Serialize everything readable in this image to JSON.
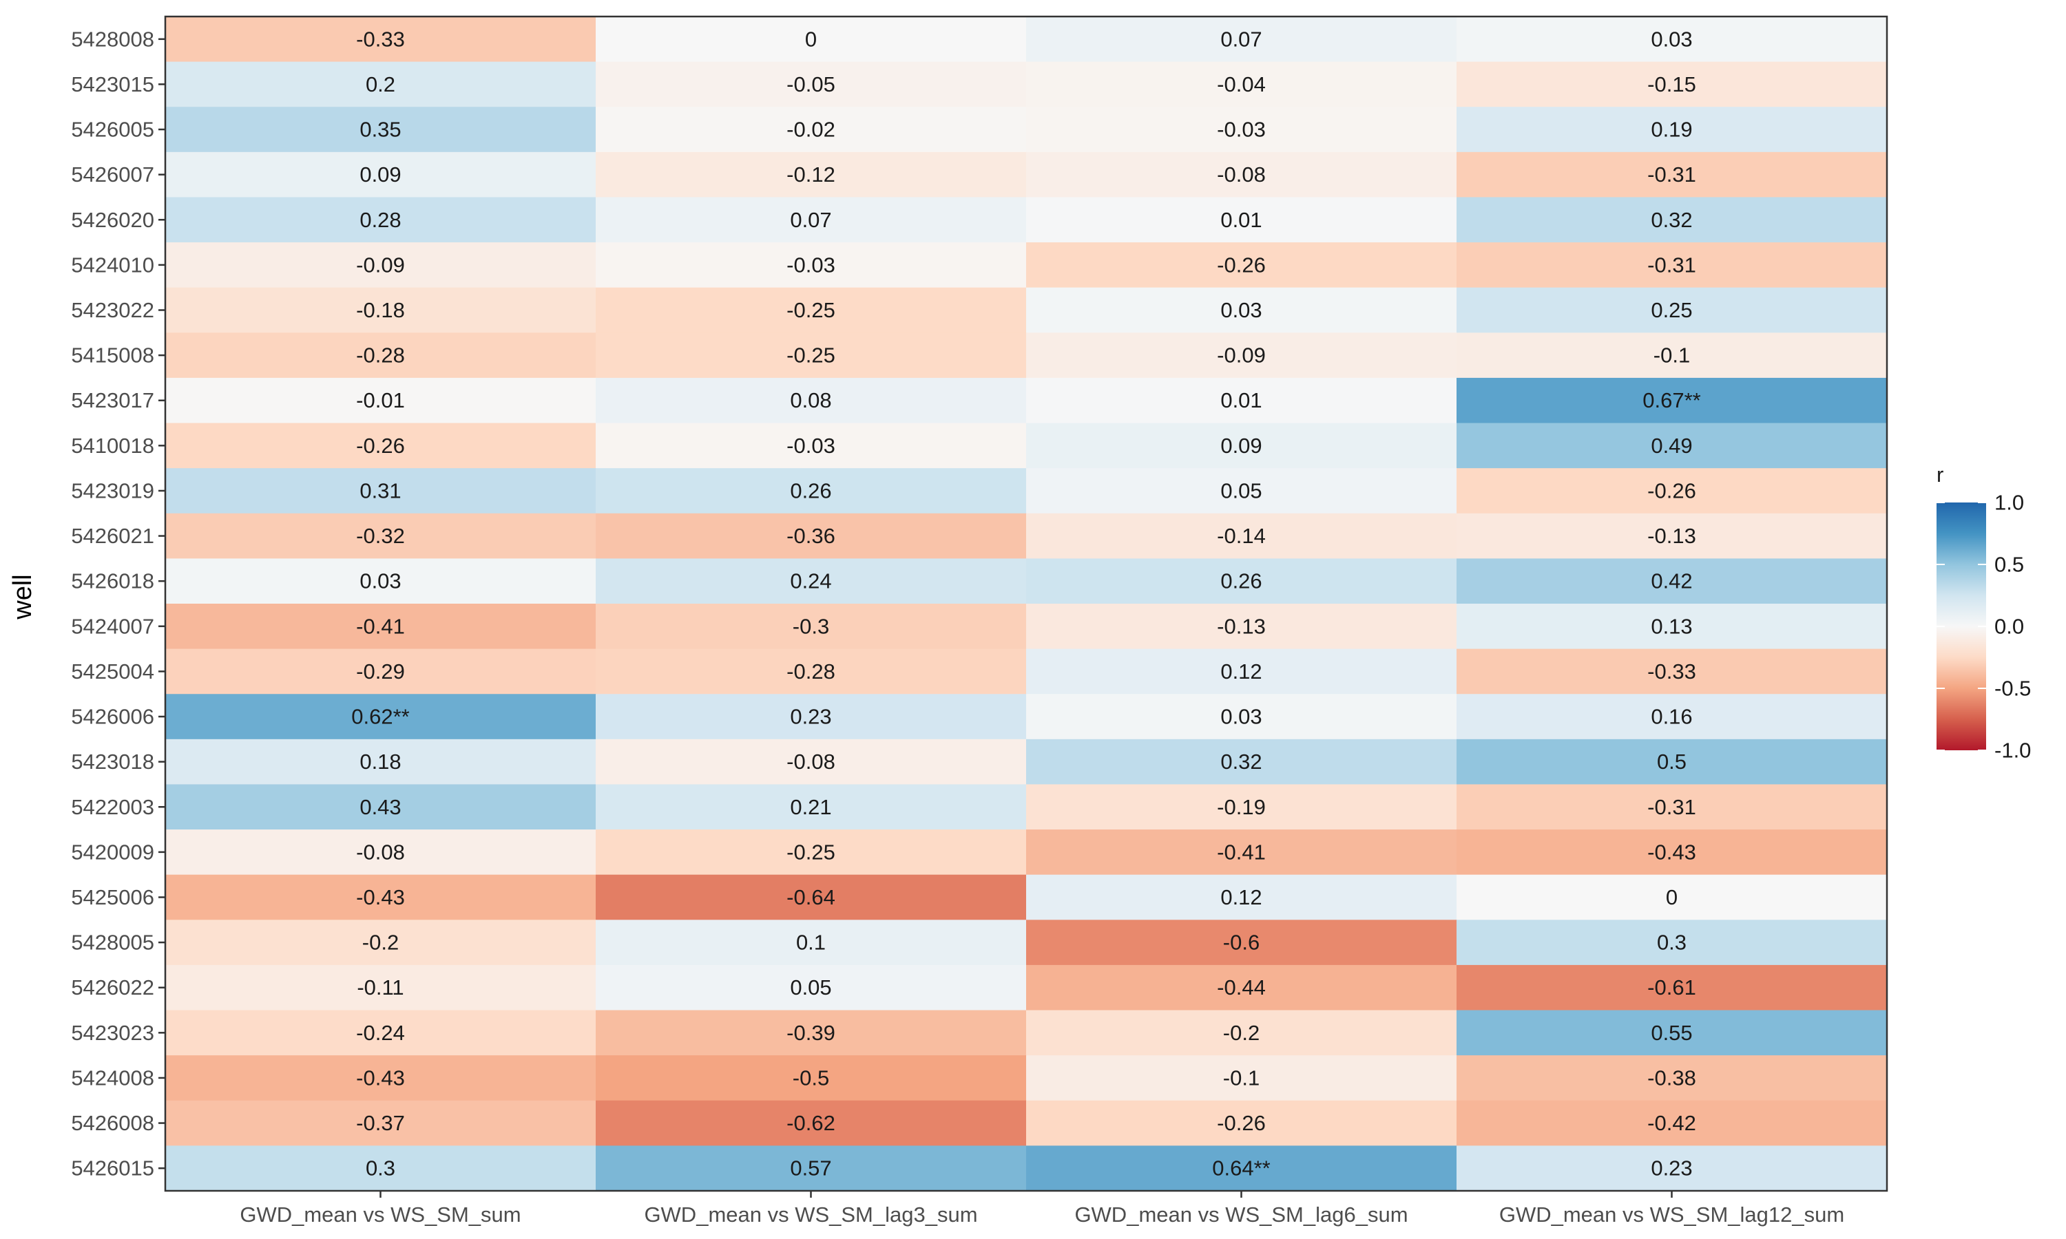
{
  "chart_data": {
    "type": "heatmap",
    "title": "",
    "xlabel": "",
    "ylabel": "well",
    "x_categories": [
      "GWD_mean vs WS_SM_sum",
      "GWD_mean vs WS_SM_lag3_sum",
      "GWD_mean vs WS_SM_lag6_sum",
      "GWD_mean vs WS_SM_lag12_sum"
    ],
    "y_categories": [
      "5428008",
      "5423015",
      "5426005",
      "5426007",
      "5426020",
      "5424010",
      "5423022",
      "5415008",
      "5423017",
      "5410018",
      "5423019",
      "5426021",
      "5426018",
      "5424007",
      "5425004",
      "5426006",
      "5423018",
      "5422003",
      "5420009",
      "5425006",
      "5428005",
      "5426022",
      "5423023",
      "5424008",
      "5426008",
      "5426015"
    ],
    "values": [
      [
        -0.33,
        0,
        0.07,
        0.03
      ],
      [
        0.2,
        -0.05,
        -0.04,
        -0.15
      ],
      [
        0.35,
        -0.02,
        -0.03,
        0.19
      ],
      [
        0.09,
        -0.12,
        -0.08,
        -0.31
      ],
      [
        0.28,
        0.07,
        0.01,
        0.32
      ],
      [
        -0.09,
        -0.03,
        -0.26,
        -0.31
      ],
      [
        -0.18,
        -0.25,
        0.03,
        0.25
      ],
      [
        -0.28,
        -0.25,
        -0.09,
        -0.1
      ],
      [
        -0.01,
        0.08,
        0.01,
        0.67
      ],
      [
        -0.26,
        -0.03,
        0.09,
        0.49
      ],
      [
        0.31,
        0.26,
        0.05,
        -0.26
      ],
      [
        -0.32,
        -0.36,
        -0.14,
        -0.13
      ],
      [
        0.03,
        0.24,
        0.26,
        0.42
      ],
      [
        -0.41,
        -0.3,
        -0.13,
        0.13
      ],
      [
        -0.29,
        -0.28,
        0.12,
        -0.33
      ],
      [
        0.62,
        0.23,
        0.03,
        0.16
      ],
      [
        0.18,
        -0.08,
        0.32,
        0.5
      ],
      [
        0.43,
        0.21,
        -0.19,
        -0.31
      ],
      [
        -0.08,
        -0.25,
        -0.41,
        -0.43
      ],
      [
        -0.43,
        -0.64,
        0.12,
        0
      ],
      [
        -0.2,
        0.1,
        -0.6,
        0.3
      ],
      [
        -0.11,
        0.05,
        -0.44,
        -0.61
      ],
      [
        -0.24,
        -0.39,
        -0.2,
        0.55
      ],
      [
        -0.43,
        -0.5,
        -0.1,
        -0.38
      ],
      [
        -0.37,
        -0.62,
        -0.26,
        -0.42
      ],
      [
        0.3,
        0.57,
        0.64,
        0.23
      ]
    ],
    "labels": [
      [
        "-0.33",
        "0",
        "0.07",
        "0.03"
      ],
      [
        "0.2",
        "-0.05",
        "-0.04",
        "-0.15"
      ],
      [
        "0.35",
        "-0.02",
        "-0.03",
        "0.19"
      ],
      [
        "0.09",
        "-0.12",
        "-0.08",
        "-0.31"
      ],
      [
        "0.28",
        "0.07",
        "0.01",
        "0.32"
      ],
      [
        "-0.09",
        "-0.03",
        "-0.26",
        "-0.31"
      ],
      [
        "-0.18",
        "-0.25",
        "0.03",
        "0.25"
      ],
      [
        "-0.28",
        "-0.25",
        "-0.09",
        "-0.1"
      ],
      [
        "-0.01",
        "0.08",
        "0.01",
        "0.67**"
      ],
      [
        "-0.26",
        "-0.03",
        "0.09",
        "0.49"
      ],
      [
        "0.31",
        "0.26",
        "0.05",
        "-0.26"
      ],
      [
        "-0.32",
        "-0.36",
        "-0.14",
        "-0.13"
      ],
      [
        "0.03",
        "0.24",
        "0.26",
        "0.42"
      ],
      [
        "-0.41",
        "-0.3",
        "-0.13",
        "0.13"
      ],
      [
        "-0.29",
        "-0.28",
        "0.12",
        "-0.33"
      ],
      [
        "0.62**",
        "0.23",
        "0.03",
        "0.16"
      ],
      [
        "0.18",
        "-0.08",
        "0.32",
        "0.5"
      ],
      [
        "0.43",
        "0.21",
        "-0.19",
        "-0.31"
      ],
      [
        "-0.08",
        "-0.25",
        "-0.41",
        "-0.43"
      ],
      [
        "-0.43",
        "-0.64",
        "0.12",
        "0"
      ],
      [
        "-0.2",
        "0.1",
        "-0.6",
        "0.3"
      ],
      [
        "-0.11",
        "0.05",
        "-0.44",
        "-0.61"
      ],
      [
        "-0.24",
        "-0.39",
        "-0.2",
        "0.55"
      ],
      [
        "-0.43",
        "-0.5",
        "-0.1",
        "-0.38"
      ],
      [
        "-0.37",
        "-0.62",
        "-0.26",
        "-0.42"
      ],
      [
        "0.3",
        "0.57",
        "0.64**",
        "0.23"
      ]
    ],
    "color_scale": {
      "title": "r",
      "limits": [
        -1,
        1
      ],
      "breaks": [
        1,
        0.5,
        0,
        -0.5,
        -1
      ],
      "break_labels": [
        "1.0",
        "0.5",
        "0.0",
        "-0.5",
        "-1.0"
      ],
      "low_color": "#b2182b",
      "mid_color": "#f7f7f7",
      "high_color": "#2166ac",
      "palette": [
        "#b2182b",
        "#d6604d",
        "#f4a582",
        "#fddbc7",
        "#f7f7f7",
        "#d1e5f0",
        "#92c5de",
        "#4393c3",
        "#2166ac"
      ]
    },
    "legend_position": "right",
    "grid": false
  }
}
